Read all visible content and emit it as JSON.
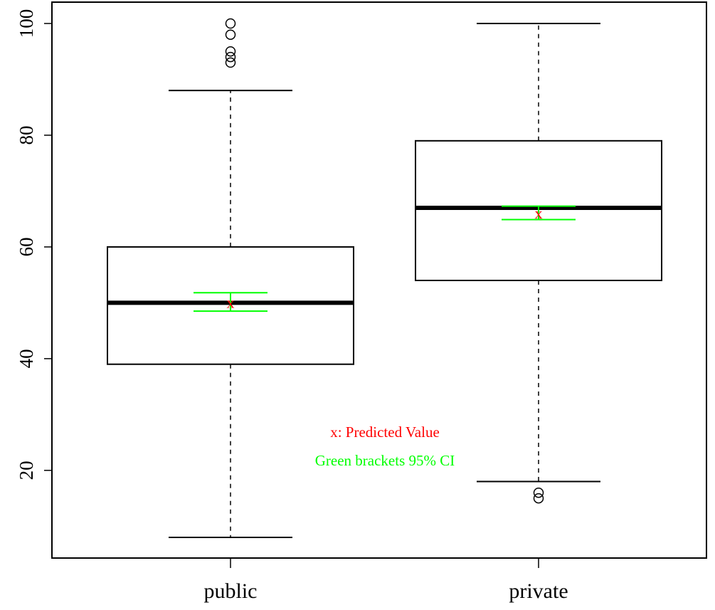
{
  "chart_data": {
    "type": "boxplot",
    "title": "",
    "xlabel": "",
    "ylabel": "",
    "categories": [
      "public",
      "private"
    ],
    "ylim": [
      4,
      104
    ],
    "yticks": [
      20,
      40,
      60,
      80,
      100
    ],
    "grid": false,
    "boxes": [
      {
        "name": "public",
        "whisker_low": 8,
        "q1": 39,
        "median": 50,
        "q3": 60,
        "whisker_high": 88,
        "outliers": [
          93,
          94,
          95,
          98,
          100
        ],
        "predicted": 50,
        "ci": [
          48.5,
          51.8
        ]
      },
      {
        "name": "private",
        "whisker_low": 18,
        "q1": 54,
        "median": 67,
        "q3": 79,
        "whisker_high": 100,
        "outliers": [
          15,
          16
        ],
        "predicted": 66,
        "ci": [
          64.9,
          67.3
        ]
      }
    ],
    "annotations": [
      {
        "text": "x: Predicted Value",
        "color": "#ff0000"
      },
      {
        "text": "Green brackets 95% CI",
        "color": "#00ff00"
      }
    ],
    "predicted_marker": "x",
    "colors": {
      "predicted": "#ff0000",
      "ci": "#00ff00",
      "box": "#000000"
    }
  }
}
